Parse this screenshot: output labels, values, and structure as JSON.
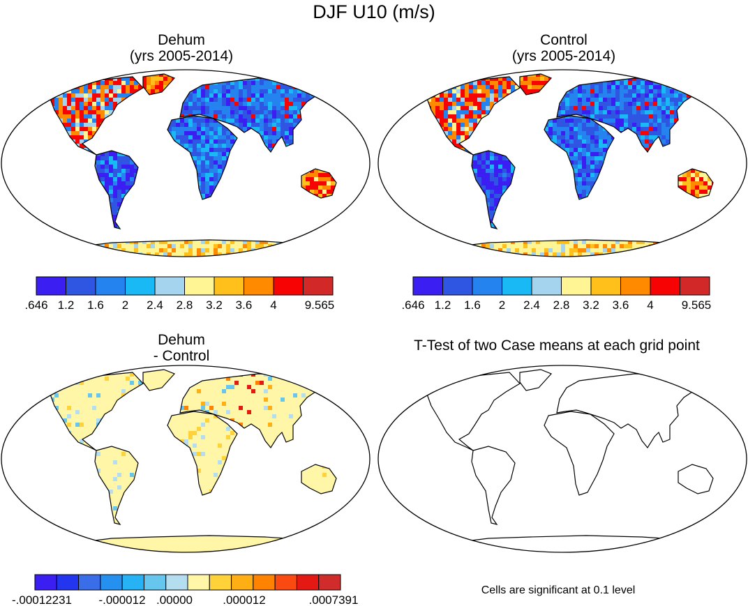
{
  "title": "DJF U10 (m/s)",
  "panels": [
    {
      "id": "dehum",
      "title_line1": "Dehum",
      "title_line2": "(yrs 2005-2014)"
    },
    {
      "id": "control",
      "title_line1": "Control",
      "title_line2": "(yrs 2005-2014)"
    },
    {
      "id": "diff",
      "title_line1": "Dehum",
      "title_line2": "- Control"
    },
    {
      "id": "ttest",
      "title_line1": "T-Test of two Case means at each grid point",
      "title_line2": ""
    }
  ],
  "colorbars": {
    "abs": {
      "colors": [
        "#3a1ef2",
        "#2f55e3",
        "#2583f0",
        "#19b9f5",
        "#a5d5ee",
        "#fff594",
        "#ffc01c",
        "#ff8a00",
        "#f70303",
        "#d22828"
      ],
      "labels": [
        ".646",
        "1.2",
        "1.6",
        "2",
        "2.4",
        "2.8",
        "3.2",
        "3.6",
        "4",
        "9.565"
      ]
    },
    "diff": {
      "colors": [
        "#3a1ef2",
        "#2335ef",
        "#3a6ee8",
        "#2590f0",
        "#26b2f5",
        "#66c6ee",
        "#b4def0",
        "#fff6a7",
        "#ffd23a",
        "#ffae14",
        "#ff8200",
        "#fb4a11",
        "#e51914",
        "#d02c2c"
      ],
      "labels": [
        "-.00012231",
        "-.000012",
        ".00000",
        ".000012",
        ".0007391"
      ]
    }
  },
  "note": "Cells are significant at 0.1 level",
  "icons": {
    "map": "world-map-robinson"
  },
  "colors": {
    "outline": "#000000",
    "land_diff": "#fff6a7"
  }
}
